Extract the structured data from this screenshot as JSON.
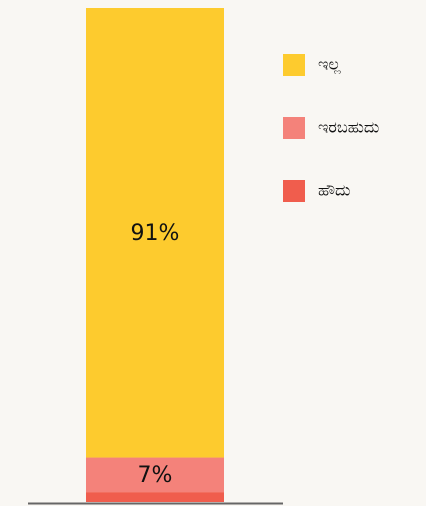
{
  "chart_data": {
    "type": "stacked_bar",
    "categories": [
      null
    ],
    "series": [
      {
        "name": "ಹೌದು",
        "color": "#f05d4d",
        "values": [
          2
        ]
      },
      {
        "name": "ಇರಬಹುದು",
        "color": "#f4827a",
        "values": [
          7
        ],
        "value_labels": [
          "7%"
        ]
      },
      {
        "name": "ಇಲ್ಲ",
        "color": "#fdcb2e",
        "values": [
          91
        ],
        "value_labels": [
          "91%"
        ]
      }
    ],
    "ylim": [
      0,
      100
    ]
  }
}
